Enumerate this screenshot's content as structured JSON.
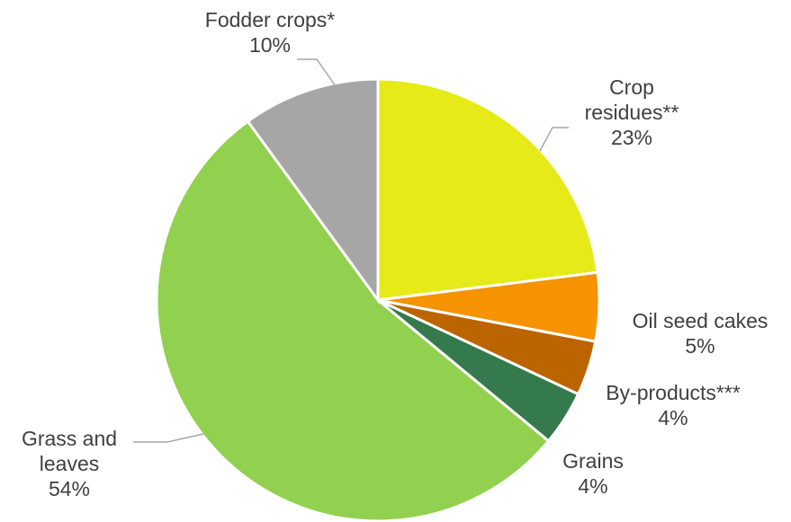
{
  "chart_data": {
    "type": "pie",
    "title": "",
    "start_angle_deg": 0,
    "direction": "clockwise",
    "slices": [
      {
        "label": "Crop residues**",
        "label_lines": [
          "Crop",
          "residues**"
        ],
        "value": 23,
        "display": "23%",
        "color": "#e6ea19"
      },
      {
        "label": "Oil seed cakes",
        "label_lines": [
          "Oil seed cakes"
        ],
        "value": 5,
        "display": "5%",
        "color": "#f59300"
      },
      {
        "label": "By-products***",
        "label_lines": [
          "By-products***"
        ],
        "value": 4,
        "display": "4%",
        "color": "#bb6400"
      },
      {
        "label": "Grains",
        "label_lines": [
          "Grains"
        ],
        "value": 4,
        "display": "4%",
        "color": "#357a4d"
      },
      {
        "label": "Grass and leaves",
        "label_lines": [
          "Grass and",
          "leaves"
        ],
        "value": 54,
        "display": "54%",
        "color": "#92d050"
      },
      {
        "label": "Fodder crops*",
        "label_lines": [
          "Fodder crops*"
        ],
        "value": 10,
        "display": "10%",
        "color": "#a6a6a6"
      }
    ],
    "legend": "none (category labels beside slices)"
  }
}
